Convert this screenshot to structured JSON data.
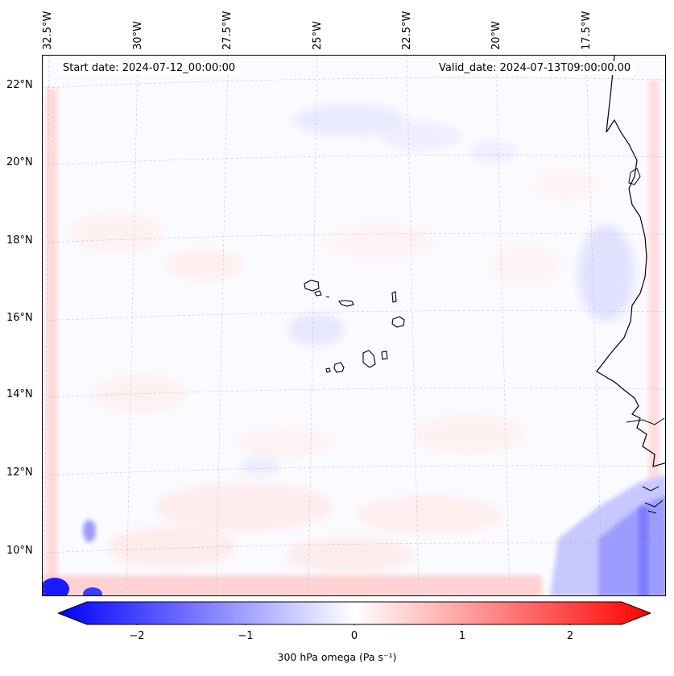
{
  "map": {
    "start_date": "Start date: 2024-07-12_00:00:00",
    "valid_date": "Valid_date: 2024-07-13T09:00:00.00",
    "lon_labels": [
      "32.5°W",
      "30°W",
      "27.5°W",
      "25°W",
      "22.5°W",
      "20°W",
      "17.5°W"
    ],
    "lat_labels": [
      "22°N",
      "20°N",
      "18°N",
      "16°N",
      "14°N",
      "12°N",
      "10°N"
    ],
    "region": "Cape Verde Islands and West African coast",
    "field": "300 hPa omega"
  },
  "colorbar": {
    "label": "300 hPa omega (Pa s⁻¹)",
    "ticks": [
      "−2",
      "−1",
      "0",
      "1",
      "2"
    ],
    "vmin": -2.5,
    "vmax": 2.5,
    "colormap": "bwr",
    "negative_color": "#0000ff",
    "zero_color": "#ffffff",
    "positive_color": "#ff0000"
  }
}
